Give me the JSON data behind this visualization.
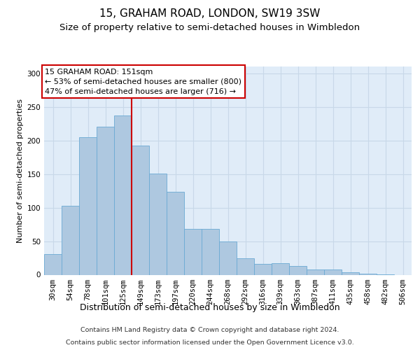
{
  "title": "15, GRAHAM ROAD, LONDON, SW19 3SW",
  "subtitle": "Size of property relative to semi-detached houses in Wimbledon",
  "xlabel": "Distribution of semi-detached houses by size in Wimbledon",
  "ylabel": "Number of semi-detached properties",
  "footer_line1": "Contains HM Land Registry data © Crown copyright and database right 2024.",
  "footer_line2": "Contains public sector information licensed under the Open Government Licence v3.0.",
  "categories": [
    "30sqm",
    "54sqm",
    "78sqm",
    "101sqm",
    "125sqm",
    "149sqm",
    "173sqm",
    "197sqm",
    "220sqm",
    "244sqm",
    "268sqm",
    "292sqm",
    "316sqm",
    "339sqm",
    "363sqm",
    "387sqm",
    "411sqm",
    "435sqm",
    "458sqm",
    "482sqm",
    "506sqm"
  ],
  "values": [
    31,
    103,
    205,
    220,
    237,
    192,
    151,
    124,
    68,
    68,
    49,
    24,
    16,
    17,
    13,
    8,
    8,
    4,
    2,
    1,
    0
  ],
  "bar_color": "#aec8e0",
  "bar_edge_color": "#6aaad4",
  "vline_index": 4.5,
  "vline_color": "#cc0000",
  "annotation_title": "15 GRAHAM ROAD: 151sqm",
  "annotation_line1": "← 53% of semi-detached houses are smaller (800)",
  "annotation_line2": "47% of semi-detached houses are larger (716) →",
  "annotation_box_facecolor": "#ffffff",
  "annotation_box_edgecolor": "#cc0000",
  "ylim": [
    0,
    310
  ],
  "yticks": [
    0,
    50,
    100,
    150,
    200,
    250,
    300
  ],
  "grid_color": "#c8d8e8",
  "bg_color": "#e0ecf8",
  "title_fontsize": 11,
  "subtitle_fontsize": 9.5,
  "ylabel_fontsize": 8,
  "xlabel_fontsize": 9,
  "tick_fontsize": 7.5,
  "annot_fontsize": 8,
  "footer_fontsize": 6.8
}
